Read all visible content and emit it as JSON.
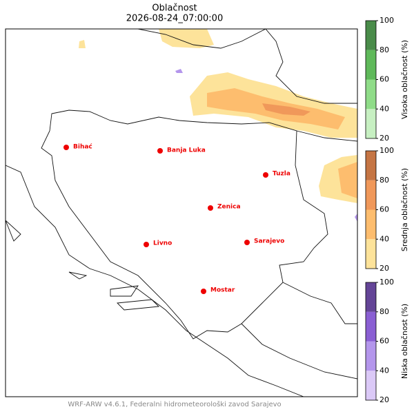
{
  "title": "Oblačnost",
  "subtitle": "2026-08-24_07:00:00",
  "cities": [
    "Bihać",
    "Banja Luka",
    "Tuzla",
    "Zenica",
    "Livno",
    "Sarajevo",
    "Mostar"
  ],
  "colorbars": [
    {
      "label": "Visoka oblačnost (%)",
      "ticks": [
        20,
        40,
        60,
        80,
        100
      ],
      "colors": [
        "#c7f0c2",
        "#8fdc88",
        "#5fb95a",
        "#4a8c4a"
      ]
    },
    {
      "label": "Srednja oblačnost (%)",
      "ticks": [
        20,
        40,
        60,
        80,
        100
      ],
      "colors": [
        "#fde39a",
        "#fdbd6e",
        "#f0985a",
        "#c57544"
      ]
    },
    {
      "label": "Niska oblačnost (%)",
      "ticks": [
        20,
        40,
        60,
        80,
        100
      ],
      "colors": [
        "#dbc9f7",
        "#b496ec",
        "#8a5fd3",
        "#644597"
      ]
    }
  ],
  "footer": "WRF-ARW v4.6.1, Federalni hidrometeorološki zavod Sarajevo"
}
